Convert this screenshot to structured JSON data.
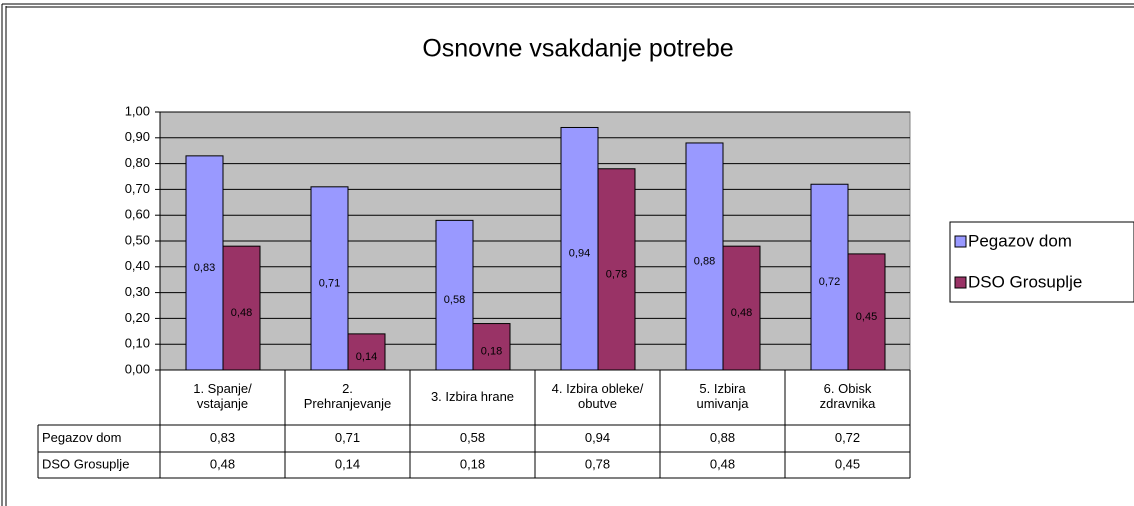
{
  "chart_data": {
    "type": "bar",
    "title": "Osnovne vsakdanje potrebe",
    "categories": [
      "1. Spanje/\nvstajanje",
      "2.\nPrehranjevanje",
      "3. Izbira hrane",
      "4. Izbira obleke/\nobutve",
      "5. Izbira\numivanja",
      "6. Obisk\nzdravnika"
    ],
    "series": [
      {
        "name": "Pegazov dom",
        "color": "#9999ff",
        "values": [
          0.83,
          0.71,
          0.58,
          0.94,
          0.88,
          0.72
        ],
        "value_labels": [
          "0,83",
          "0,71",
          "0,58",
          "0,94",
          "0,88",
          "0,72"
        ]
      },
      {
        "name": "DSO Grosuplje",
        "color": "#993366",
        "values": [
          0.48,
          0.14,
          0.18,
          0.78,
          0.48,
          0.45
        ],
        "value_labels": [
          "0,48",
          "0,14",
          "0,18",
          "0,78",
          "0,48",
          "0,45"
        ]
      }
    ],
    "ylim": [
      0,
      1
    ],
    "yticks": [
      {
        "value": 0,
        "label": "0,00"
      },
      {
        "value": 0.1,
        "label": "0,10"
      },
      {
        "value": 0.2,
        "label": "0,20"
      },
      {
        "value": 0.3,
        "label": "0,30"
      },
      {
        "value": 0.4,
        "label": "0,40"
      },
      {
        "value": 0.5,
        "label": "0,50"
      },
      {
        "value": 0.6,
        "label": "0,60"
      },
      {
        "value": 0.7,
        "label": "0,70"
      },
      {
        "value": 0.8,
        "label": "0,80"
      },
      {
        "value": 0.9,
        "label": "0,90"
      },
      {
        "value": 1,
        "label": "1,00"
      }
    ],
    "grid": true,
    "legend": "right"
  }
}
